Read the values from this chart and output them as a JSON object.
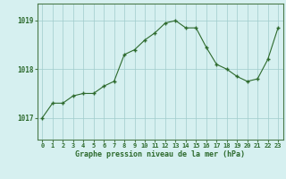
{
  "x": [
    0,
    1,
    2,
    3,
    4,
    5,
    6,
    7,
    8,
    9,
    10,
    11,
    12,
    13,
    14,
    15,
    16,
    17,
    18,
    19,
    20,
    21,
    22,
    23
  ],
  "y": [
    1017.0,
    1017.3,
    1017.3,
    1017.45,
    1017.5,
    1017.5,
    1017.65,
    1017.75,
    1018.3,
    1018.4,
    1018.6,
    1018.75,
    1018.95,
    1019.0,
    1018.85,
    1018.85,
    1018.45,
    1018.1,
    1018.0,
    1017.85,
    1017.75,
    1017.8,
    1018.2,
    1018.85
  ],
  "line_color": "#2d6a2d",
  "marker_color": "#2d6a2d",
  "bg_color": "#d6f0f0",
  "grid_color": "#a0cccc",
  "axis_label_color": "#2d6a2d",
  "tick_label_color": "#2d6a2d",
  "xlabel": "Graphe pression niveau de la mer (hPa)",
  "yticks": [
    1017,
    1018,
    1019
  ],
  "ylim": [
    1016.55,
    1019.35
  ],
  "xlim": [
    -0.5,
    23.5
  ]
}
